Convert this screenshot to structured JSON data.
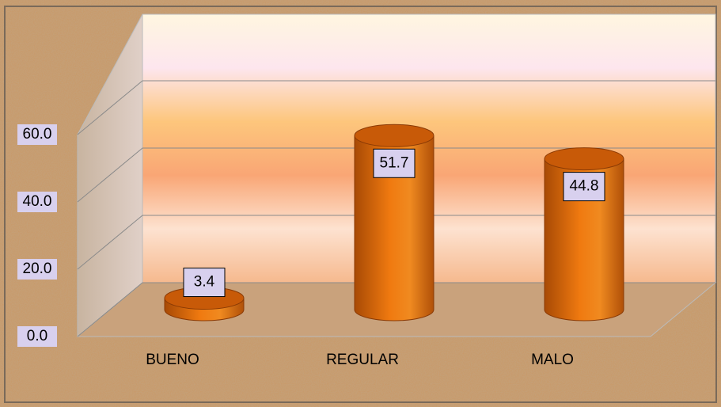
{
  "chart_data": {
    "type": "bar",
    "categories": [
      "BUENO",
      "REGULAR",
      "MALO"
    ],
    "values": [
      3.4,
      51.7,
      44.8
    ],
    "color": "#e8720c",
    "ylim": [
      0,
      60
    ],
    "yticks": [
      {
        "value": 0,
        "label": "0.0"
      },
      {
        "value": 20,
        "label": "20.0"
      },
      {
        "value": 40,
        "label": "40.0"
      },
      {
        "value": 60,
        "label": "60.0"
      }
    ],
    "grid": true
  }
}
